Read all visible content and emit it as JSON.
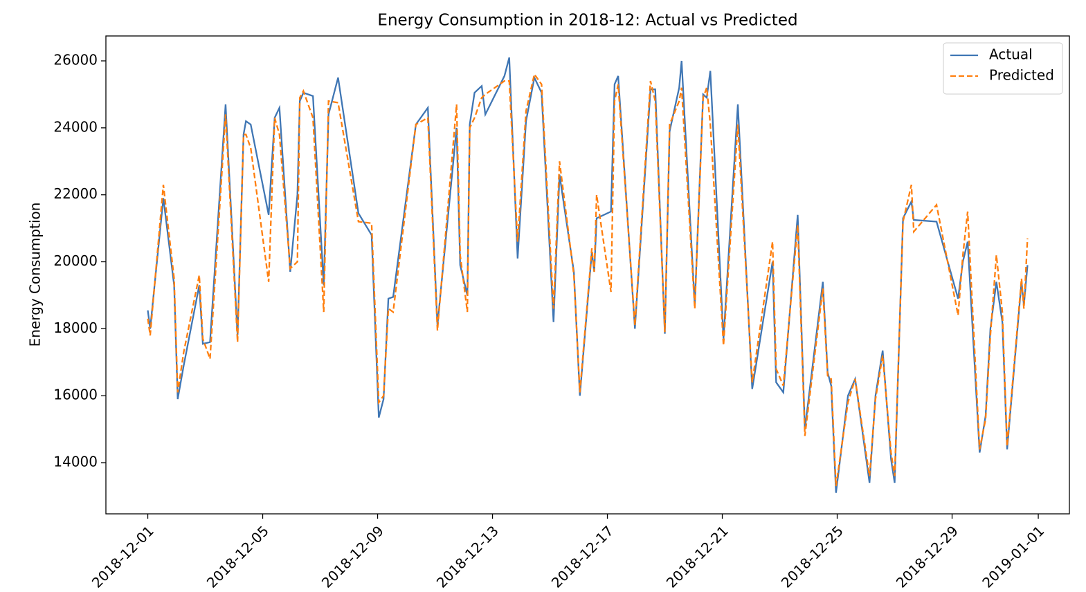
{
  "chart_data": {
    "type": "line",
    "title": "Energy Consumption in 2018-12: Actual vs Predicted",
    "ylabel": "Energy Consumption",
    "legend": "upper right",
    "xlim": [
      "2018-11-29T13:00",
      "2019-01-02T02:00"
    ],
    "xticks": [
      "2018-12-01",
      "2018-12-05",
      "2018-12-09",
      "2018-12-13",
      "2018-12-17",
      "2018-12-21",
      "2018-12-25",
      "2018-12-29",
      "2019-01-01"
    ],
    "ylim": [
      12472,
      26744
    ],
    "yticks": [
      14000,
      16000,
      18000,
      20000,
      22000,
      24000,
      26000
    ],
    "x": [
      "2018-12-01T00:00",
      "2018-12-01T02:00",
      "2018-12-01T13:00",
      "2018-12-01T22:00",
      "2018-12-02T01:00",
      "2018-12-02T06:00",
      "2018-12-02T19:00",
      "2018-12-02T22:00",
      "2018-12-03T04:00",
      "2018-12-03T17:00",
      "2018-12-04T03:00",
      "2018-12-04T08:00",
      "2018-12-04T10:00",
      "2018-12-04T14:00",
      "2018-12-05T05:00",
      "2018-12-05T10:00",
      "2018-12-05T14:00",
      "2018-12-05T23:00",
      "2018-12-06T05:00",
      "2018-12-06T07:00",
      "2018-12-06T10:00",
      "2018-12-06T18:00",
      "2018-12-07T03:00",
      "2018-12-07T07:00",
      "2018-12-07T15:00",
      "2018-12-08T08:00",
      "2018-12-08T19:00",
      "2018-12-09T01:00",
      "2018-12-09T05:00",
      "2018-12-09T09:00",
      "2018-12-09T13:00",
      "2018-12-10T08:00",
      "2018-12-10T18:00",
      "2018-12-11T02:00",
      "2018-12-11T18:00",
      "2018-12-11T21:00",
      "2018-12-12T03:00",
      "2018-12-12T05:00",
      "2018-12-12T09:00",
      "2018-12-12T15:00",
      "2018-12-12T18:00",
      "2018-12-13T10:00",
      "2018-12-13T14:00",
      "2018-12-13T21:00",
      "2018-12-14T04:00",
      "2018-12-14T11:00",
      "2018-12-14T17:00",
      "2018-12-15T03:00",
      "2018-12-15T08:00",
      "2018-12-15T20:00",
      "2018-12-16T01:00",
      "2018-12-16T11:00",
      "2018-12-16T13:00",
      "2018-12-16T15:00",
      "2018-12-17T03:00",
      "2018-12-17T06:00",
      "2018-12-17T09:00",
      "2018-12-17T23:00",
      "2018-12-18T12:00",
      "2018-12-18T16:00",
      "2018-12-19T00:00",
      "2018-12-19T04:00",
      "2018-12-19T12:00",
      "2018-12-19T14:00",
      "2018-12-20T01:00",
      "2018-12-20T08:00",
      "2018-12-20T11:00",
      "2018-12-20T14:00",
      "2018-12-21T01:00",
      "2018-12-21T13:00",
      "2018-12-22T01:00",
      "2018-12-22T18:00",
      "2018-12-22T21:00",
      "2018-12-23T03:00",
      "2018-12-23T15:00",
      "2018-12-23T21:00",
      "2018-12-24T12:00",
      "2018-12-24T16:00",
      "2018-12-24T19:00",
      "2018-12-24T23:00",
      "2018-12-25T09:00",
      "2018-12-25T15:00",
      "2018-12-26T03:00",
      "2018-12-26T08:00",
      "2018-12-26T14:00",
      "2018-12-26T21:00",
      "2018-12-27T00:00",
      "2018-12-27T07:00",
      "2018-12-27T14:00",
      "2018-12-27T16:00",
      "2018-12-28T11:00",
      "2018-12-29T05:00",
      "2018-12-29T09:00",
      "2018-12-29T13:00",
      "2018-12-29T23:00",
      "2018-12-30T04:00",
      "2018-12-30T08:00",
      "2018-12-30T13:00",
      "2018-12-30T18:00",
      "2018-12-30T22:00",
      "2018-12-31T10:00",
      "2018-12-31T12:00",
      "2018-12-31T15:00"
    ],
    "series": [
      {
        "name": "Actual",
        "color": "#3f76b4",
        "dash": "solid",
        "values": [
          18550,
          18000,
          21900,
          19300,
          15900,
          16900,
          19300,
          17550,
          17600,
          24700,
          17800,
          23800,
          24200,
          24100,
          21400,
          24300,
          24600,
          19700,
          22000,
          24800,
          25050,
          24950,
          19300,
          24400,
          25500,
          21450,
          20800,
          15350,
          15900,
          18900,
          18950,
          24100,
          24600,
          18100,
          24000,
          19900,
          19000,
          24100,
          25050,
          25250,
          24400,
          25550,
          26100,
          20100,
          24200,
          25500,
          25050,
          18200,
          22600,
          19700,
          16000,
          20300,
          19700,
          21300,
          21500,
          25300,
          25550,
          18000,
          25150,
          25150,
          17850,
          23900,
          25200,
          26000,
          18700,
          25000,
          24900,
          25700,
          17700,
          24700,
          16200,
          20000,
          16400,
          16100,
          21400,
          15000,
          19400,
          16700,
          16300,
          13100,
          16000,
          16500,
          13400,
          16000,
          17350,
          14100,
          13400,
          21300,
          21800,
          21250,
          21200,
          18900,
          20000,
          20600,
          14300,
          15400,
          18000,
          19400,
          18200,
          14400,
          19400,
          18700,
          19900
        ]
      },
      {
        "name": "Predicted",
        "color": "#ff7f0e",
        "dash": "dashed",
        "values": [
          18300,
          17800,
          22300,
          19500,
          16100,
          17300,
          19600,
          17700,
          17100,
          24400,
          17600,
          23800,
          23800,
          23400,
          19400,
          24300,
          23800,
          19800,
          20000,
          24900,
          25100,
          24300,
          18500,
          24800,
          24750,
          21200,
          21150,
          15800,
          16000,
          18600,
          18500,
          24100,
          24300,
          17950,
          24700,
          20200,
          18500,
          24000,
          24300,
          24900,
          25000,
          25400,
          25400,
          20600,
          24500,
          25600,
          25300,
          18600,
          23000,
          19600,
          16100,
          20400,
          19700,
          22000,
          19100,
          24800,
          25300,
          18100,
          25400,
          24800,
          17900,
          24100,
          24800,
          25200,
          18600,
          24900,
          25200,
          24100,
          17500,
          24100,
          16400,
          20600,
          16800,
          16300,
          21100,
          14800,
          19200,
          16600,
          16500,
          13300,
          15800,
          16500,
          13600,
          15900,
          17200,
          14300,
          13600,
          21200,
          22300,
          20900,
          21700,
          18400,
          20200,
          21500,
          14400,
          15300,
          17800,
          20200,
          18500,
          14500,
          19500,
          18600,
          20700
        ]
      }
    ]
  }
}
